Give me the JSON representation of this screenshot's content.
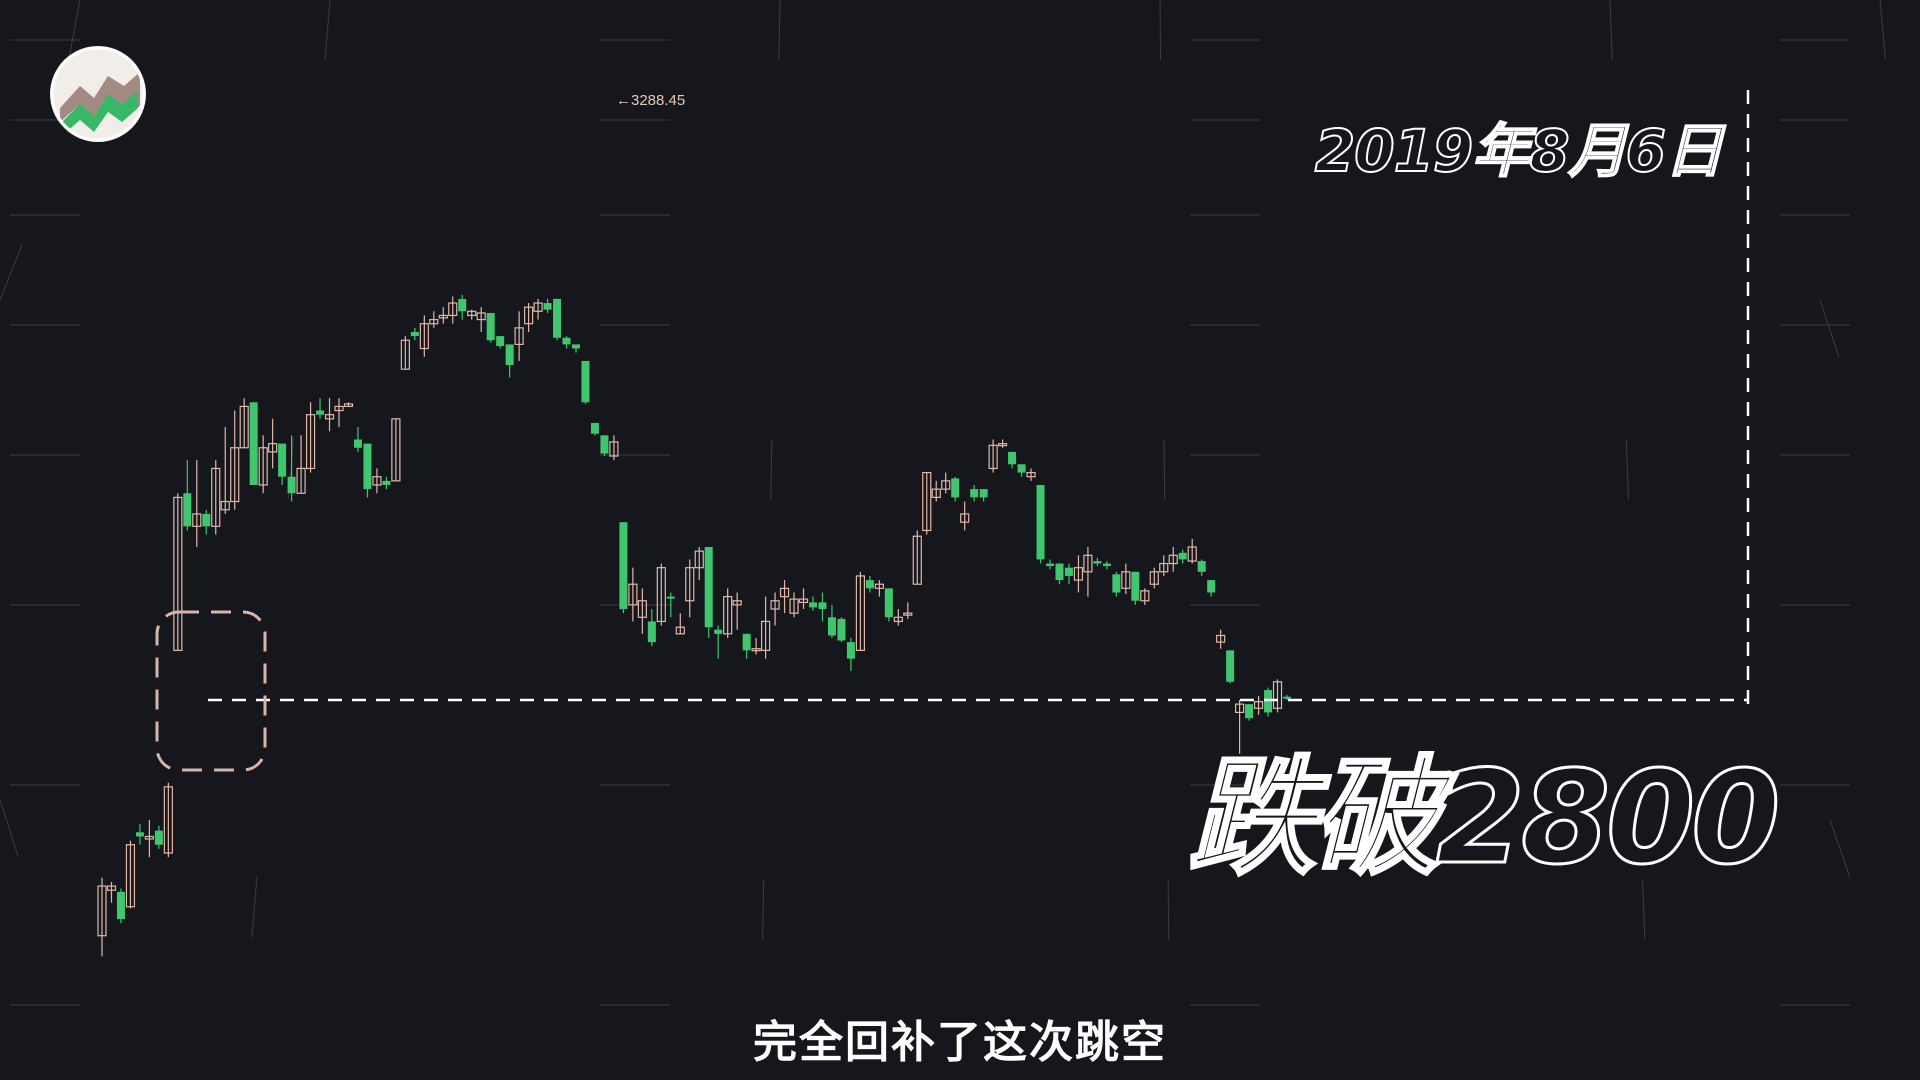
{
  "date_label": "2019年8月6日",
  "breakdown_label": "跌破2800",
  "subtitle": "完全回补了这次跳空",
  "peak_annotation": "←3288.45",
  "colors": {
    "background": "#15171d",
    "up": "#e0b8a8",
    "down": "#3fc66e",
    "guide": "#ffffff",
    "gap_box": "#d7b5a8"
  },
  "chart_data": {
    "type": "candlestick",
    "annotations": [
      "←3288.45",
      "2019年8月6日",
      "跌破2800"
    ],
    "peak_value": 3288.45,
    "support_level": 2800,
    "candles": [
      {
        "o": 2515,
        "h": 2585,
        "l": 2490,
        "c": 2575,
        "dir": "up"
      },
      {
        "o": 2575,
        "h": 2580,
        "l": 2555,
        "c": 2570,
        "dir": "up"
      },
      {
        "o": 2568,
        "h": 2572,
        "l": 2530,
        "c": 2535,
        "dir": "down"
      },
      {
        "o": 2550,
        "h": 2630,
        "l": 2548,
        "c": 2625,
        "dir": "up"
      },
      {
        "o": 2640,
        "h": 2650,
        "l": 2625,
        "c": 2635,
        "dir": "down"
      },
      {
        "o": 2632,
        "h": 2655,
        "l": 2610,
        "c": 2635,
        "dir": "up"
      },
      {
        "o": 2642,
        "h": 2648,
        "l": 2620,
        "c": 2625,
        "dir": "down"
      },
      {
        "o": 2615,
        "h": 2700,
        "l": 2610,
        "c": 2695,
        "dir": "up"
      },
      {
        "o": 2860,
        "h": 3050,
        "l": 2860,
        "c": 3045,
        "dir": "up"
      },
      {
        "o": 3050,
        "h": 3090,
        "l": 3005,
        "c": 3010,
        "dir": "down"
      },
      {
        "o": 3010,
        "h": 3090,
        "l": 2985,
        "c": 3025,
        "dir": "up"
      },
      {
        "o": 3025,
        "h": 3030,
        "l": 3000,
        "c": 3010,
        "dir": "down"
      },
      {
        "o": 3010,
        "h": 3090,
        "l": 3000,
        "c": 3080,
        "dir": "up"
      },
      {
        "o": 3030,
        "h": 3130,
        "l": 3025,
        "c": 3040,
        "dir": "up"
      },
      {
        "o": 3040,
        "h": 3150,
        "l": 3030,
        "c": 3105,
        "dir": "up"
      },
      {
        "o": 3105,
        "h": 3165,
        "l": 3105,
        "c": 3155,
        "dir": "up"
      },
      {
        "o": 3160,
        "h": 3160,
        "l": 3060,
        "c": 3060,
        "dir": "down"
      },
      {
        "o": 3060,
        "h": 3120,
        "l": 3050,
        "c": 3105,
        "dir": "up"
      },
      {
        "o": 3100,
        "h": 3140,
        "l": 3080,
        "c": 3110,
        "dir": "up"
      },
      {
        "o": 3110,
        "h": 3110,
        "l": 3060,
        "c": 3070,
        "dir": "down"
      },
      {
        "o": 3070,
        "h": 3120,
        "l": 3040,
        "c": 3050,
        "dir": "down"
      },
      {
        "o": 3050,
        "h": 3120,
        "l": 3050,
        "c": 3080,
        "dir": "up"
      },
      {
        "o": 3080,
        "h": 3160,
        "l": 3075,
        "c": 3145,
        "dir": "up"
      },
      {
        "o": 3150,
        "h": 3165,
        "l": 3140,
        "c": 3145,
        "dir": "down"
      },
      {
        "o": 3140,
        "h": 3165,
        "l": 3125,
        "c": 3145,
        "dir": "up"
      },
      {
        "o": 3150,
        "h": 3165,
        "l": 3130,
        "c": 3155,
        "dir": "up"
      },
      {
        "o": 3155,
        "h": 3160,
        "l": 3155,
        "c": 3158,
        "dir": "up"
      },
      {
        "o": 3115,
        "h": 3130,
        "l": 3100,
        "c": 3105,
        "dir": "down"
      },
      {
        "o": 3110,
        "h": 3110,
        "l": 3045,
        "c": 3055,
        "dir": "down"
      },
      {
        "o": 3060,
        "h": 3080,
        "l": 3050,
        "c": 3070,
        "dir": "up"
      },
      {
        "o": 3060,
        "h": 3070,
        "l": 3055,
        "c": 3065,
        "dir": "down"
      },
      {
        "o": 3065,
        "h": 3140,
        "l": 3065,
        "c": 3140,
        "dir": "up"
      },
      {
        "o": 3200,
        "h": 3240,
        "l": 3200,
        "c": 3235,
        "dir": "up"
      },
      {
        "o": 3240,
        "h": 3250,
        "l": 3235,
        "c": 3245,
        "dir": "down"
      },
      {
        "o": 3225,
        "h": 3265,
        "l": 3215,
        "c": 3255,
        "dir": "up"
      },
      {
        "o": 3255,
        "h": 3270,
        "l": 3250,
        "c": 3260,
        "dir": "up"
      },
      {
        "o": 3262,
        "h": 3275,
        "l": 3255,
        "c": 3265,
        "dir": "up"
      },
      {
        "o": 3265,
        "h": 3288,
        "l": 3255,
        "c": 3280,
        "dir": "up"
      },
      {
        "o": 3285,
        "h": 3290,
        "l": 3260,
        "c": 3270,
        "dir": "down"
      },
      {
        "o": 3270,
        "h": 3272,
        "l": 3260,
        "c": 3265,
        "dir": "up"
      },
      {
        "o": 3260,
        "h": 3275,
        "l": 3245,
        "c": 3268,
        "dir": "up"
      },
      {
        "o": 3268,
        "h": 3268,
        "l": 3232,
        "c": 3235,
        "dir": "down"
      },
      {
        "o": 3240,
        "h": 3240,
        "l": 3225,
        "c": 3228,
        "dir": "down"
      },
      {
        "o": 3230,
        "h": 3230,
        "l": 3190,
        "c": 3205,
        "dir": "down"
      },
      {
        "o": 3230,
        "h": 3270,
        "l": 3210,
        "c": 3250,
        "dir": "up"
      },
      {
        "o": 3255,
        "h": 3280,
        "l": 3245,
        "c": 3275,
        "dir": "up"
      },
      {
        "o": 3270,
        "h": 3285,
        "l": 3260,
        "c": 3280,
        "dir": "up"
      },
      {
        "o": 3280,
        "h": 3285,
        "l": 3268,
        "c": 3272,
        "dir": "down"
      },
      {
        "o": 3285,
        "h": 3285,
        "l": 3235,
        "c": 3238,
        "dir": "down"
      },
      {
        "o": 3238,
        "h": 3240,
        "l": 3225,
        "c": 3230,
        "dir": "down"
      },
      {
        "o": 3230,
        "h": 3230,
        "l": 3220,
        "c": 3225,
        "dir": "down"
      },
      {
        "o": 3210,
        "h": 3210,
        "l": 3158,
        "c": 3160,
        "dir": "down"
      },
      {
        "o": 3135,
        "h": 3135,
        "l": 3120,
        "c": 3122,
        "dir": "down"
      },
      {
        "o": 3120,
        "h": 3120,
        "l": 3095,
        "c": 3098,
        "dir": "down"
      },
      {
        "o": 3095,
        "h": 3120,
        "l": 3090,
        "c": 3112,
        "dir": "up"
      },
      {
        "o": 3015,
        "h": 3015,
        "l": 2905,
        "c": 2910,
        "dir": "down"
      },
      {
        "o": 2915,
        "h": 2960,
        "l": 2895,
        "c": 2940,
        "dir": "up"
      },
      {
        "o": 2900,
        "h": 2935,
        "l": 2880,
        "c": 2920,
        "dir": "up"
      },
      {
        "o": 2895,
        "h": 2910,
        "l": 2865,
        "c": 2870,
        "dir": "down"
      },
      {
        "o": 2895,
        "h": 2965,
        "l": 2890,
        "c": 2960,
        "dir": "up"
      },
      {
        "o": 2925,
        "h": 2930,
        "l": 2900,
        "c": 2925,
        "dir": "down"
      },
      {
        "o": 2880,
        "h": 2905,
        "l": 2880,
        "c": 2888,
        "dir": "up"
      },
      {
        "o": 2920,
        "h": 2970,
        "l": 2900,
        "c": 2960,
        "dir": "up"
      },
      {
        "o": 2960,
        "h": 2985,
        "l": 2945,
        "c": 2980,
        "dir": "up"
      },
      {
        "o": 2985,
        "h": 2985,
        "l": 2875,
        "c": 2888,
        "dir": "down"
      },
      {
        "o": 2880,
        "h": 2890,
        "l": 2850,
        "c": 2885,
        "dir": "down"
      },
      {
        "o": 2880,
        "h": 2935,
        "l": 2875,
        "c": 2925,
        "dir": "up"
      },
      {
        "o": 2920,
        "h": 2930,
        "l": 2885,
        "c": 2915,
        "dir": "up"
      },
      {
        "o": 2880,
        "h": 2880,
        "l": 2850,
        "c": 2860,
        "dir": "down"
      },
      {
        "o": 2860,
        "h": 2875,
        "l": 2855,
        "c": 2862,
        "dir": "up"
      },
      {
        "o": 2860,
        "h": 2925,
        "l": 2850,
        "c": 2895,
        "dir": "up"
      },
      {
        "o": 2910,
        "h": 2930,
        "l": 2890,
        "c": 2920,
        "dir": "up"
      },
      {
        "o": 2935,
        "h": 2945,
        "l": 2905,
        "c": 2925,
        "dir": "up"
      },
      {
        "o": 2905,
        "h": 2930,
        "l": 2900,
        "c": 2922,
        "dir": "up"
      },
      {
        "o": 2922,
        "h": 2935,
        "l": 2910,
        "c": 2918,
        "dir": "up"
      },
      {
        "o": 2918,
        "h": 2925,
        "l": 2908,
        "c": 2912,
        "dir": "down"
      },
      {
        "o": 2918,
        "h": 2930,
        "l": 2895,
        "c": 2910,
        "dir": "down"
      },
      {
        "o": 2900,
        "h": 2915,
        "l": 2875,
        "c": 2878,
        "dir": "down"
      },
      {
        "o": 2898,
        "h": 2900,
        "l": 2870,
        "c": 2872,
        "dir": "down"
      },
      {
        "o": 2870,
        "h": 2875,
        "l": 2835,
        "c": 2850,
        "dir": "down"
      },
      {
        "o": 2860,
        "h": 2955,
        "l": 2860,
        "c": 2950,
        "dir": "up"
      },
      {
        "o": 2945,
        "h": 2950,
        "l": 2930,
        "c": 2935,
        "dir": "down"
      },
      {
        "o": 2935,
        "h": 2945,
        "l": 2925,
        "c": 2940,
        "dir": "up"
      },
      {
        "o": 2935,
        "h": 2935,
        "l": 2895,
        "c": 2900,
        "dir": "down"
      },
      {
        "o": 2895,
        "h": 2910,
        "l": 2890,
        "c": 2900,
        "dir": "up"
      },
      {
        "o": 2903,
        "h": 2918,
        "l": 2898,
        "c": 2905,
        "dir": "up"
      },
      {
        "o": 2940,
        "h": 3005,
        "l": 2940,
        "c": 2998,
        "dir": "up"
      },
      {
        "o": 3005,
        "h": 3075,
        "l": 3000,
        "c": 3075,
        "dir": "up"
      },
      {
        "o": 3045,
        "h": 3065,
        "l": 3040,
        "c": 3055,
        "dir": "up"
      },
      {
        "o": 3055,
        "h": 3075,
        "l": 3050,
        "c": 3065,
        "dir": "up"
      },
      {
        "o": 3068,
        "h": 3070,
        "l": 3040,
        "c": 3045,
        "dir": "down"
      },
      {
        "o": 3015,
        "h": 3040,
        "l": 3005,
        "c": 3025,
        "dir": "up"
      },
      {
        "o": 3045,
        "h": 3060,
        "l": 3040,
        "c": 3055,
        "dir": "down"
      },
      {
        "o": 3055,
        "h": 3055,
        "l": 3040,
        "c": 3045,
        "dir": "down"
      },
      {
        "o": 3080,
        "h": 3115,
        "l": 3075,
        "c": 3108,
        "dir": "up"
      },
      {
        "o": 3110,
        "h": 3115,
        "l": 3105,
        "c": 3108,
        "dir": "up"
      },
      {
        "o": 3100,
        "h": 3100,
        "l": 3080,
        "c": 3085,
        "dir": "down"
      },
      {
        "o": 3085,
        "h": 3085,
        "l": 3070,
        "c": 3075,
        "dir": "down"
      },
      {
        "o": 3075,
        "h": 3080,
        "l": 3065,
        "c": 3070,
        "dir": "up"
      },
      {
        "o": 3060,
        "h": 3060,
        "l": 2965,
        "c": 2970,
        "dir": "down"
      },
      {
        "o": 2965,
        "h": 2970,
        "l": 2958,
        "c": 2962,
        "dir": "down"
      },
      {
        "o": 2965,
        "h": 2965,
        "l": 2940,
        "c": 2945,
        "dir": "down"
      },
      {
        "o": 2950,
        "h": 2965,
        "l": 2940,
        "c": 2960,
        "dir": "down"
      },
      {
        "o": 2945,
        "h": 2975,
        "l": 2930,
        "c": 2960,
        "dir": "up"
      },
      {
        "o": 2955,
        "h": 2985,
        "l": 2925,
        "c": 2975,
        "dir": "up"
      },
      {
        "o": 2968,
        "h": 2972,
        "l": 2962,
        "c": 2965,
        "dir": "down"
      },
      {
        "o": 2965,
        "h": 2968,
        "l": 2958,
        "c": 2962,
        "dir": "down"
      },
      {
        "o": 2952,
        "h": 2955,
        "l": 2925,
        "c": 2930,
        "dir": "down"
      },
      {
        "o": 2935,
        "h": 2965,
        "l": 2928,
        "c": 2955,
        "dir": "up"
      },
      {
        "o": 2955,
        "h": 2955,
        "l": 2915,
        "c": 2920,
        "dir": "down"
      },
      {
        "o": 2920,
        "h": 2935,
        "l": 2915,
        "c": 2932,
        "dir": "up"
      },
      {
        "o": 2940,
        "h": 2960,
        "l": 2935,
        "c": 2955,
        "dir": "up"
      },
      {
        "o": 2955,
        "h": 2975,
        "l": 2950,
        "c": 2965,
        "dir": "up"
      },
      {
        "o": 2965,
        "h": 2985,
        "l": 2955,
        "c": 2975,
        "dir": "up"
      },
      {
        "o": 2978,
        "h": 2982,
        "l": 2965,
        "c": 2970,
        "dir": "down"
      },
      {
        "o": 2985,
        "h": 2995,
        "l": 2965,
        "c": 2968,
        "dir": "up"
      },
      {
        "o": 2968,
        "h": 2970,
        "l": 2950,
        "c": 2955,
        "dir": "down"
      },
      {
        "o": 2945,
        "h": 2945,
        "l": 2925,
        "c": 2930,
        "dir": "down"
      },
      {
        "o": 2870,
        "h": 2885,
        "l": 2862,
        "c": 2878,
        "dir": "up"
      },
      {
        "o": 2860,
        "h": 2860,
        "l": 2820,
        "c": 2822,
        "dir": "down"
      },
      {
        "o": 2795,
        "h": 2800,
        "l": 2735,
        "c": 2785,
        "dir": "up"
      },
      {
        "o": 2795,
        "h": 2795,
        "l": 2775,
        "c": 2778,
        "dir": "down"
      },
      {
        "o": 2790,
        "h": 2805,
        "l": 2782,
        "c": 2798,
        "dir": "up"
      },
      {
        "o": 2812,
        "h": 2815,
        "l": 2780,
        "c": 2785,
        "dir": "down"
      },
      {
        "o": 2790,
        "h": 2825,
        "l": 2785,
        "c": 2822,
        "dir": "up"
      },
      {
        "o": 2802,
        "h": 2806,
        "l": 2800,
        "c": 2804,
        "dir": "down"
      }
    ]
  }
}
